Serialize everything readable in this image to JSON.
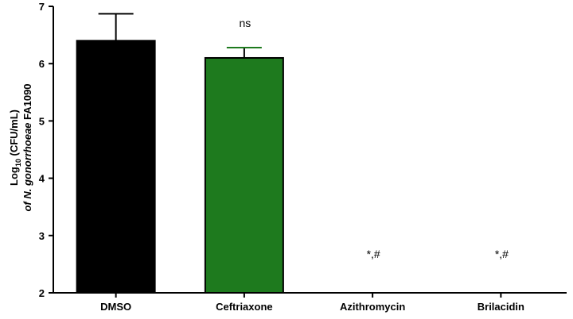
{
  "chart_data": {
    "type": "bar",
    "categories": [
      "DMSO",
      "Ceftriaxone",
      "Azithromycin",
      "Brilacidin"
    ],
    "values": [
      6.4,
      6.1,
      null,
      null
    ],
    "errors": [
      0.47,
      0.18,
      null,
      null
    ],
    "annotations": [
      "",
      "ns",
      "*,#",
      "*,#"
    ],
    "colors": [
      "#000000",
      "#1e7a1e",
      null,
      null
    ],
    "ylabel": {
      "line1_prefix": "Log",
      "line1_sub": "10",
      "line1_suffix": " (CFU/mL)",
      "line2_italic": "of N. gonorrhoeae",
      "line2_rest": " FA1090"
    },
    "ylim": [
      2,
      7
    ],
    "yticks": [
      "2",
      "3",
      "4",
      "5",
      "6",
      "7"
    ],
    "grid": false
  }
}
